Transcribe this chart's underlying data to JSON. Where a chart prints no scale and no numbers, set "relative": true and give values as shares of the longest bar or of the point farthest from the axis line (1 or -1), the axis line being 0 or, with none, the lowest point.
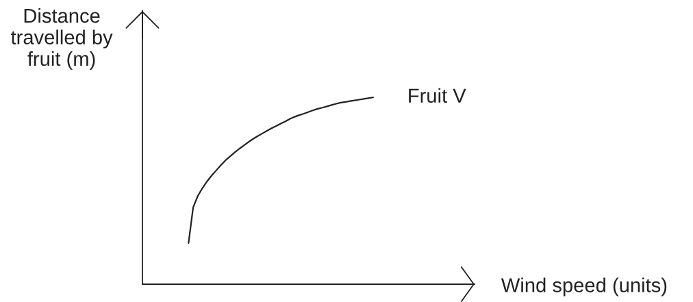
{
  "chart_data": {
    "type": "line",
    "relative": true,
    "tick_labels": false,
    "line_style": "solid",
    "xlabel": "Wind speed (units)",
    "ylabel": "Distance\ntravelled by\nfruit (m)",
    "categories": [
      null,
      null,
      null,
      null,
      null,
      null,
      null,
      null,
      null,
      null,
      null,
      null,
      null,
      null,
      null,
      null,
      null,
      null,
      null,
      null,
      null,
      null,
      null,
      null,
      null,
      null,
      null,
      null,
      null,
      null,
      null,
      null,
      null,
      null,
      null,
      null,
      null,
      null,
      null,
      null,
      null,
      null,
      null,
      null,
      null,
      null,
      null,
      null,
      null,
      null,
      null,
      null,
      null,
      null,
      null,
      null,
      null,
      null,
      null,
      null,
      null,
      null,
      null,
      null,
      null,
      null,
      null,
      null,
      null,
      null,
      null,
      null,
      null
    ],
    "series": [
      {
        "name": "Fruit V",
        "color": "#222222",
        "values": [
          null,
          null,
          null,
          null,
          null,
          null,
          null,
          null,
          null,
          null,
          0.22,
          0.411,
          0.472,
          0.514,
          0.55,
          0.581,
          0.609,
          0.637,
          0.663,
          0.684,
          0.705,
          0.725,
          0.743,
          0.761,
          0.778,
          0.793,
          0.807,
          0.821,
          0.835,
          0.847,
          0.86,
          0.872,
          0.885,
          0.896,
          0.905,
          0.913,
          0.922,
          0.931,
          0.939,
          0.945,
          0.952,
          0.959,
          0.966,
          0.972,
          0.976,
          0.98,
          0.984,
          0.988,
          0.992,
          0.996,
          1.0,
          null,
          null,
          null,
          null,
          null,
          null,
          null,
          null,
          null,
          null,
          null,
          null,
          null,
          null,
          null,
          null,
          null,
          null,
          null,
          null,
          null,
          null
        ]
      }
    ]
  }
}
